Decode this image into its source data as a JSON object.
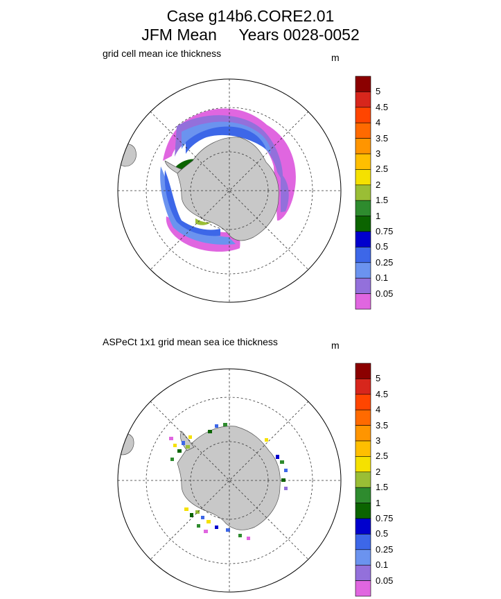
{
  "title": {
    "line1": "Case g14b6.CORE2.01",
    "line2": "JFM Mean     Years 0028-0052"
  },
  "panels": [
    {
      "subtitle": "grid cell mean ice thickness",
      "unit": "m"
    },
    {
      "subtitle": "ASPeCt 1x1 grid mean sea ice thickness",
      "unit": "m"
    }
  ],
  "colorbar": {
    "labels": [
      "5",
      "4.5",
      "4",
      "3.5",
      "3",
      "2.5",
      "2",
      "1.5",
      "1",
      "0.75",
      "0.5",
      "0.25",
      "0.1",
      "0.05"
    ],
    "colors": [
      "#8b0000",
      "#d7261c",
      "#ff4500",
      "#ff6a00",
      "#ff9500",
      "#ffbf00",
      "#f5e100",
      "#9abe35",
      "#2e8b2e",
      "#0b6400",
      "#0000cd",
      "#3d67e8",
      "#6b93ef",
      "#9370db",
      "#e066e0"
    ]
  },
  "chart_data": [
    {
      "type": "heatmap",
      "projection": "south polar stereographic",
      "title": "grid cell mean ice thickness",
      "units": "m",
      "levels": [
        0.05,
        0.1,
        0.25,
        0.5,
        0.75,
        1,
        1.5,
        2,
        2.5,
        3,
        3.5,
        4,
        4.5,
        5
      ]
    },
    {
      "type": "heatmap",
      "projection": "south polar stereographic",
      "title": "ASPeCt 1x1 grid mean sea ice thickness",
      "units": "m",
      "levels": [
        0.05,
        0.1,
        0.25,
        0.5,
        0.75,
        1,
        1.5,
        2,
        2.5,
        3,
        3.5,
        4,
        4.5,
        5
      ]
    }
  ]
}
